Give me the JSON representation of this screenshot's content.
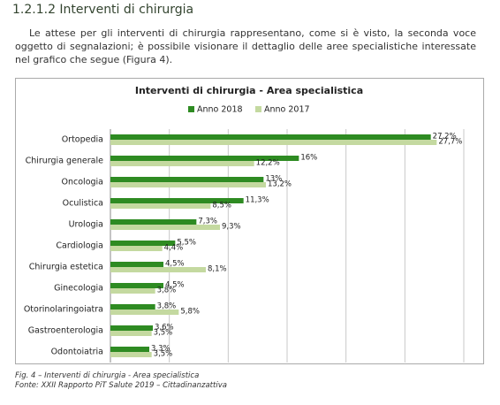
{
  "header": {
    "title": "1.2.1.2 Interventi di chirurgia"
  },
  "paragraph": "Le attese per gli interventi di chirurgia rappresentano, come si è visto, la seconda voce oggetto di segnalazioni; è possibile visionare il dettaglio delle aree specialistiche interessate nel grafico che segue (Figura 4).",
  "chart_data": {
    "type": "bar",
    "orientation": "horizontal",
    "title": "Interventi di chirurgia - Area specialistica",
    "categories": [
      "Ortopedia",
      "Chirurgia generale",
      "Oncologia",
      "Oculistica",
      "Urologia",
      "Cardiologia",
      "Chirurgia estetica",
      "Ginecologia",
      "Otorinolaringoiatra",
      "Gastroenterologia",
      "Odontoiatria"
    ],
    "series": [
      {
        "name": "Anno 2018",
        "color": "#2e8b22",
        "values": [
          27.2,
          16,
          13,
          11.3,
          7.3,
          5.5,
          4.5,
          4.5,
          3.8,
          3.6,
          3.3
        ],
        "value_labels": [
          "27,2%",
          "16%",
          "13%",
          "11,3%",
          "7,3%",
          "5,5%",
          "4,5%",
          "4,5%",
          "3,8%",
          "3,6%",
          "3,3%"
        ]
      },
      {
        "name": "Anno 2017",
        "color": "#c4d9a0",
        "values": [
          27.7,
          12.2,
          13.2,
          8.5,
          9.3,
          4.4,
          8.1,
          3.8,
          5.8,
          3.5,
          3.5
        ],
        "value_labels": [
          "27,7%",
          "12,2%",
          "13,2%",
          "8,5%",
          "9,3%",
          "4,4%",
          "8,1%",
          "3,8%",
          "5,8%",
          "3,5%",
          "3,5%"
        ]
      }
    ],
    "xlim": [
      0,
      30
    ],
    "xticks": [
      0,
      5,
      10,
      15,
      20,
      25,
      30
    ],
    "grid": true
  },
  "caption": {
    "line1": "Fig. 4 – Interventi di chirurgia - Area specialistica",
    "line2": "Fonte: XXII Rapporto PiT Salute 2019 – Cittadinanzattiva"
  }
}
